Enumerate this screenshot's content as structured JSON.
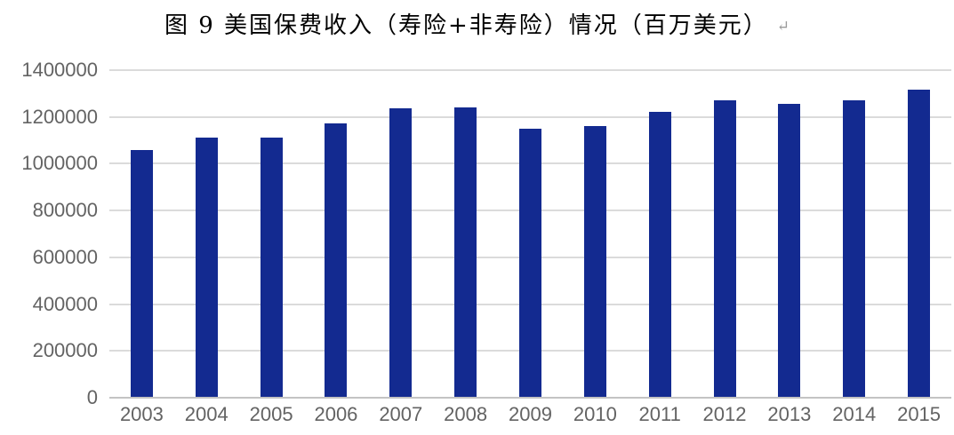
{
  "header": {
    "title": "图 9 美国保费收入（寿险+非寿险）情况（百万美元）",
    "paragraph_mark": "↵"
  },
  "colors": {
    "bar": "#132a90",
    "gridline": "#dbdbdb",
    "axis_line": "#c3c3c3",
    "tick_label": "#636363",
    "title": "#000000",
    "paragraph_mark": "#9a9a9a",
    "background": "#ffffff"
  },
  "chart_data": {
    "type": "bar",
    "title": "图 9 美国保费收入（寿险+非寿险）情况（百万美元）",
    "categories": [
      "2003",
      "2004",
      "2005",
      "2006",
      "2007",
      "2008",
      "2009",
      "2010",
      "2011",
      "2012",
      "2013",
      "2014",
      "2015"
    ],
    "values": [
      1060000,
      1113000,
      1110000,
      1172000,
      1236000,
      1241000,
      1148000,
      1162000,
      1223000,
      1272000,
      1256000,
      1272000,
      1318000
    ],
    "xlabel": "",
    "ylabel": "",
    "ylim": [
      0,
      1400000
    ],
    "yticks": [
      0,
      200000,
      400000,
      600000,
      800000,
      1000000,
      1200000,
      1400000
    ],
    "ytick_labels": [
      "0",
      "200000",
      "400000",
      "600000",
      "800000",
      "1000000",
      "1200000",
      "1400000"
    ],
    "grid": true,
    "legend": false
  }
}
